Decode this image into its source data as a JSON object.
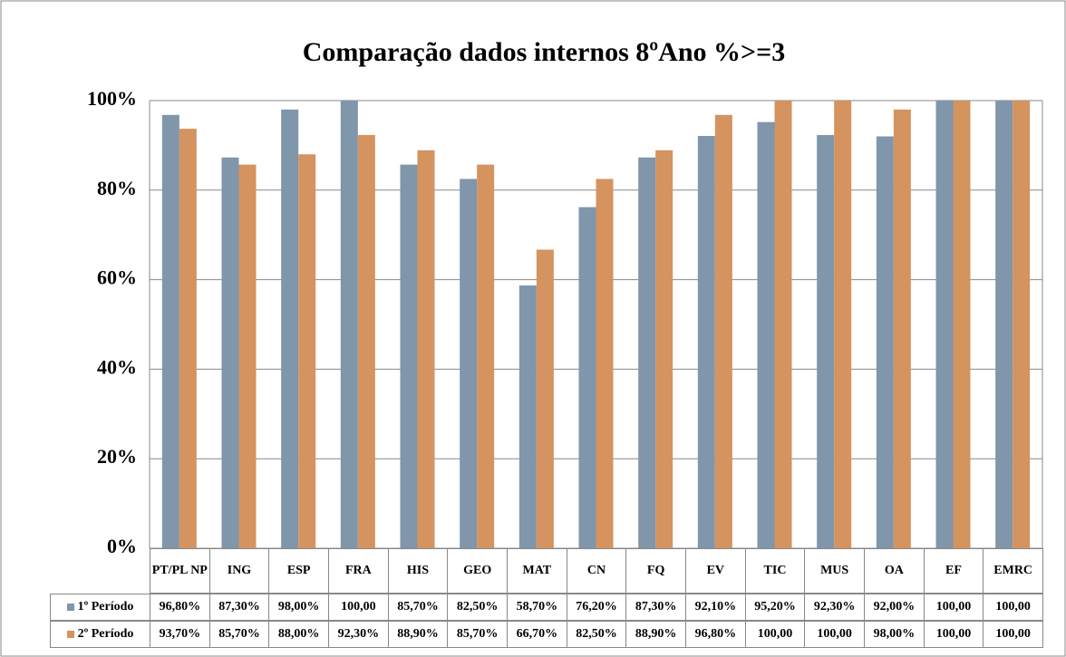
{
  "chart_data": {
    "type": "bar",
    "title": "Comparação dados internos 8ºAno %>=3",
    "categories": [
      "PT/PL NP",
      "ING",
      "ESP",
      "FRA",
      "HIS",
      "GEO",
      "MAT",
      "CN",
      "FQ",
      "EV",
      "TIC",
      "MUS",
      "OA",
      "EF",
      "EMRC"
    ],
    "series": [
      {
        "name": "1º Período",
        "color": "#7f96ab",
        "values": [
          96.8,
          87.3,
          98,
          100,
          85.7,
          82.5,
          58.7,
          76.2,
          87.3,
          92.1,
          95.2,
          92.3,
          92,
          100,
          100
        ],
        "value_labels": [
          "96,80%",
          "87,30%",
          "98,00%",
          "100,00",
          "85,70%",
          "82,50%",
          "58,70%",
          "76,20%",
          "87,30%",
          "92,10%",
          "95,20%",
          "92,30%",
          "92,00%",
          "100,00",
          "100,00"
        ]
      },
      {
        "name": "2º Período",
        "color": "#d4935f",
        "values": [
          93.7,
          85.7,
          88,
          92.3,
          88.9,
          85.7,
          66.7,
          82.5,
          88.9,
          96.8,
          100,
          100,
          98,
          100,
          100
        ],
        "value_labels": [
          "93,70%",
          "85,70%",
          "88,00%",
          "92,30%",
          "88,90%",
          "85,70%",
          "66,70%",
          "82,50%",
          "88,90%",
          "96,80%",
          "100,00",
          "100,00",
          "98,00%",
          "100,00",
          "100,00"
        ]
      }
    ],
    "ylim": [
      0,
      100
    ],
    "yticks": [
      {
        "value": 0,
        "label": "0%"
      },
      {
        "value": 20,
        "label": "20%"
      },
      {
        "value": 40,
        "label": "40%"
      },
      {
        "value": 60,
        "label": "60%"
      },
      {
        "value": 80,
        "label": "80%"
      },
      {
        "value": 100,
        "label": "100%"
      }
    ],
    "grid": true
  }
}
